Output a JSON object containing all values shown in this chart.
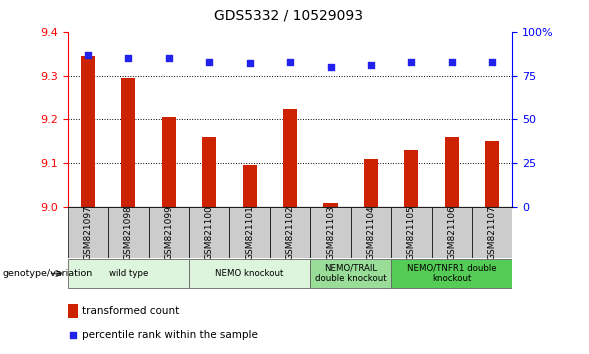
{
  "title": "GDS5332 / 10529093",
  "samples": [
    "GSM821097",
    "GSM821098",
    "GSM821099",
    "GSM821100",
    "GSM821101",
    "GSM821102",
    "GSM821103",
    "GSM821104",
    "GSM821105",
    "GSM821106",
    "GSM821107"
  ],
  "bar_values": [
    9.345,
    9.295,
    9.205,
    9.16,
    9.095,
    9.225,
    9.01,
    9.11,
    9.13,
    9.16,
    9.15
  ],
  "percentile_values": [
    87,
    85,
    85,
    83,
    82,
    83,
    80,
    81,
    83,
    83,
    83
  ],
  "ylim_left": [
    9.0,
    9.4
  ],
  "ylim_right": [
    0,
    100
  ],
  "yticks_left": [
    9.0,
    9.1,
    9.2,
    9.3,
    9.4
  ],
  "yticks_right": [
    0,
    25,
    50,
    75,
    100
  ],
  "bar_color": "#cc2200",
  "dot_color": "#2222ee",
  "background_color": "#ffffff",
  "tick_box_color": "#cccccc",
  "groups": [
    {
      "label": "wild type",
      "start": 0,
      "end": 2,
      "color": "#ddf5dd"
    },
    {
      "label": "NEMO knockout",
      "start": 3,
      "end": 5,
      "color": "#ddf5dd"
    },
    {
      "label": "NEMO/TRAIL\ndouble knockout",
      "start": 6,
      "end": 7,
      "color": "#99dd99"
    },
    {
      "label": "NEMO/TNFR1 double\nknockout",
      "start": 8,
      "end": 10,
      "color": "#55cc55"
    }
  ],
  "legend_bar_label": "transformed count",
  "legend_dot_label": "percentile rank within the sample",
  "genotype_label": "genotype/variation"
}
